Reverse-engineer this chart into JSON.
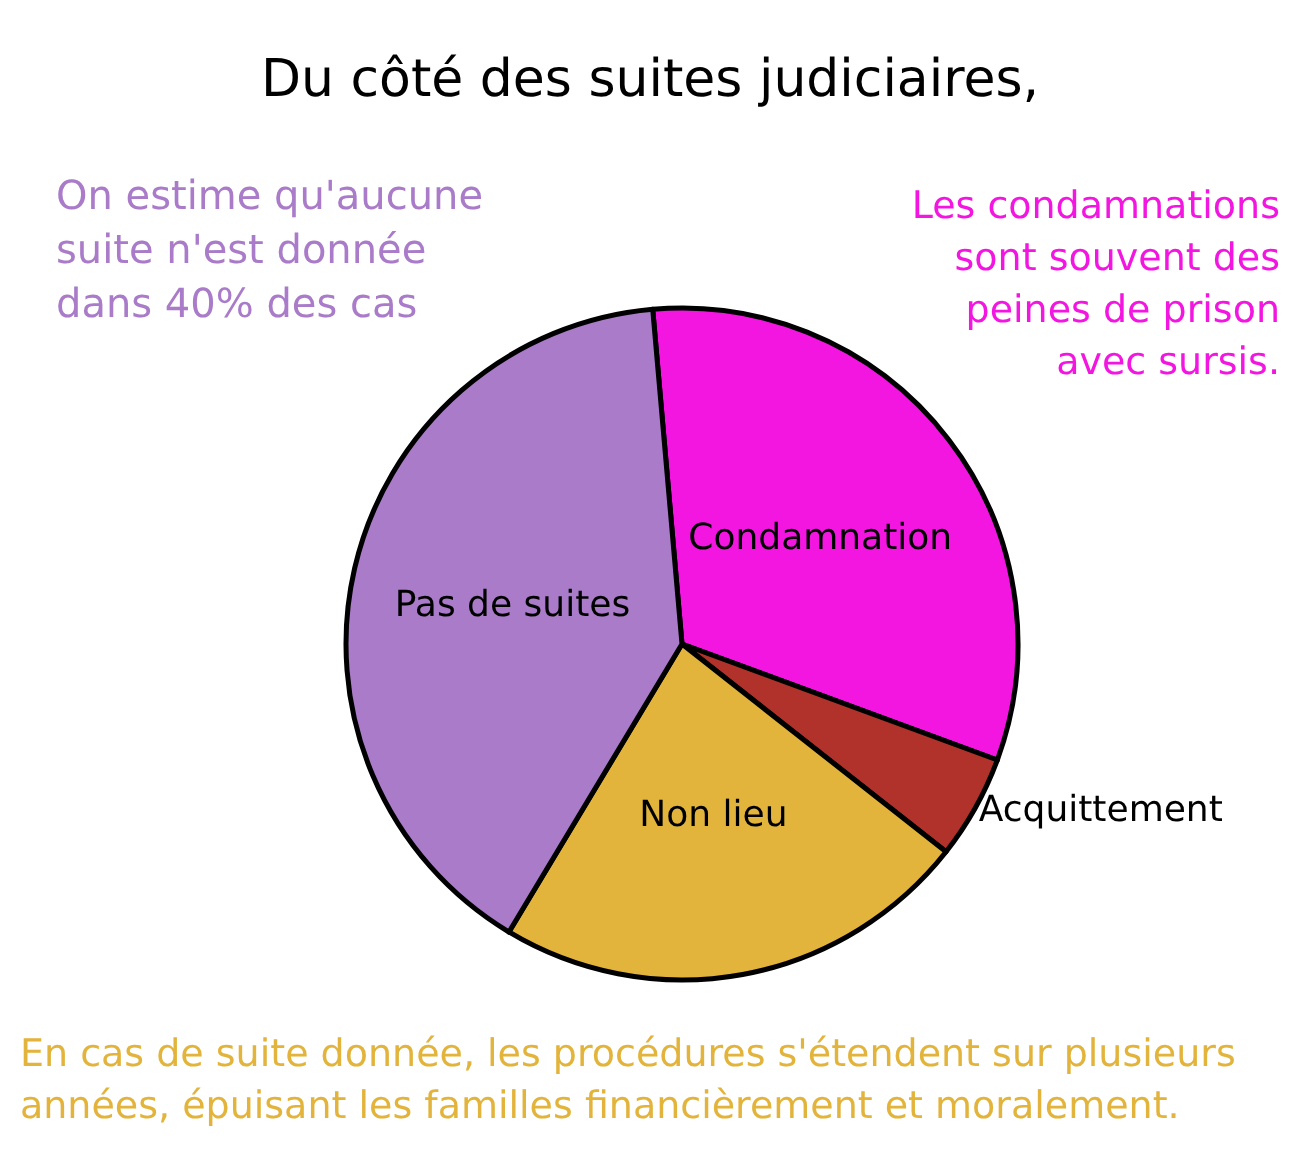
{
  "chart_data": {
    "type": "pie",
    "title": "Du côté des suites judiciaires,",
    "categories": [
      "Condamnation",
      "Acquittement",
      "Non lieu",
      "Pas de suites"
    ],
    "values": [
      32,
      5,
      23,
      40
    ],
    "colors": [
      "#f316e0",
      "#b0322a",
      "#e3b43b",
      "#a97bc9"
    ],
    "annotations": [
      "On estime qu'aucune suite n'est donnée dans 40% des cas",
      "Les condamnations sont souvent des peines de prison avec sursis.",
      "En cas de suite donnée, les procédures s'étendent sur plusieurs années, épuisant les familles financièrement et moralement."
    ]
  }
}
